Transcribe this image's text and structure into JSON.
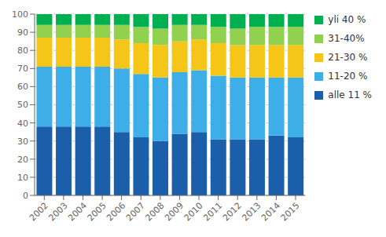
{
  "chart_data": {
    "type": "bar",
    "stacked": true,
    "grid": true,
    "legend": "right",
    "categories": [
      "2002",
      "2003",
      "2004",
      "2005",
      "2006",
      "2007",
      "2008",
      "2009",
      "2010",
      "2011",
      "2012",
      "2013",
      "2014",
      "2015"
    ],
    "series": [
      {
        "name": "alle 11 %",
        "color": "#1b5faa",
        "values": [
          38,
          38,
          38,
          38,
          35,
          32,
          30,
          34,
          35,
          31,
          31,
          31,
          33,
          32
        ]
      },
      {
        "name": "11-20 %",
        "color": "#3daee8",
        "values": [
          33,
          33,
          33,
          33,
          35,
          35,
          35,
          34,
          34,
          35,
          34,
          34,
          32,
          33
        ]
      },
      {
        "name": "21-30 %",
        "color": "#f5c518",
        "values": [
          16,
          16,
          16,
          16,
          16,
          17,
          18,
          17,
          17,
          18,
          18,
          18,
          18,
          18
        ]
      },
      {
        "name": "31-40%",
        "color": "#92d050",
        "values": [
          7,
          7,
          7,
          7,
          8,
          9,
          9,
          9,
          8,
          9,
          9,
          10,
          10,
          10
        ]
      },
      {
        "name": "yli 40 %",
        "color": "#00b050",
        "values": [
          6,
          6,
          6,
          6,
          6,
          7,
          8,
          6,
          6,
          7,
          8,
          7,
          7,
          7
        ]
      }
    ],
    "ylim": [
      0,
      100
    ],
    "yticks": [
      0,
      10,
      20,
      30,
      40,
      50,
      60,
      70,
      80,
      90,
      100
    ]
  }
}
